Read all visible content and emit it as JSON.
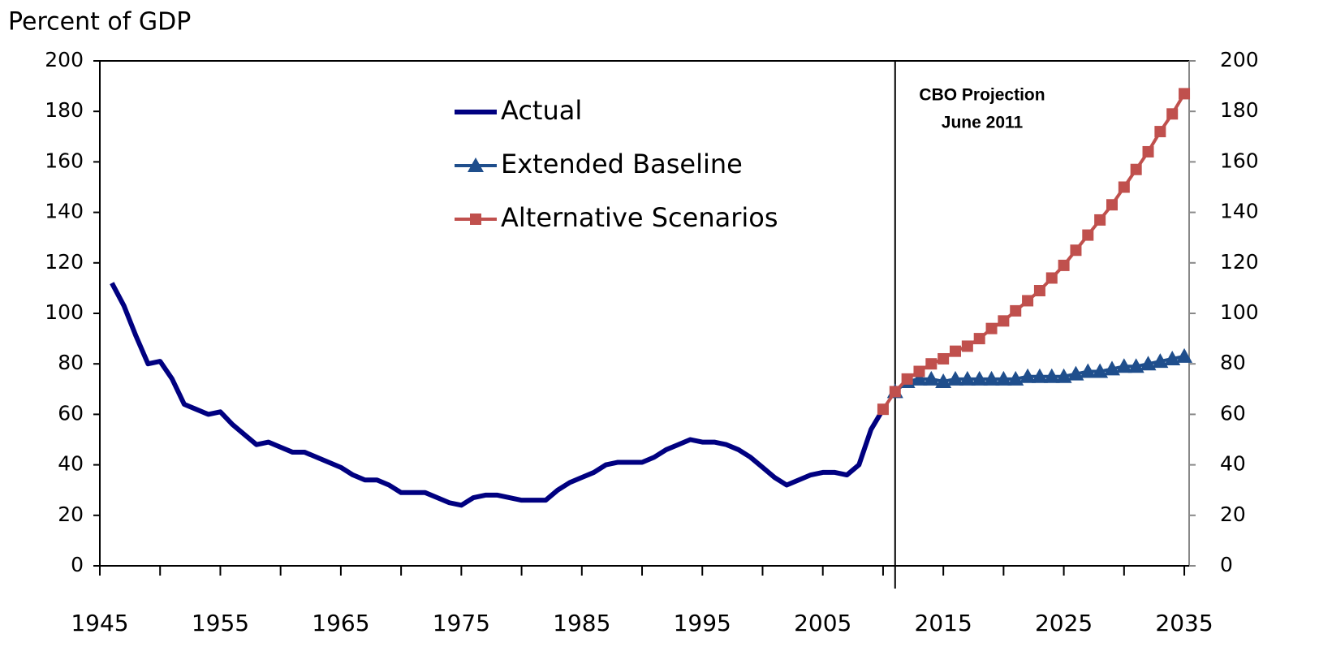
{
  "chart_data": {
    "type": "line",
    "y_axis_title": "Percent of GDP",
    "annotation": [
      "CBO Projection",
      "June 2011"
    ],
    "projection_start": 2011,
    "x": [
      1946,
      1947,
      1948,
      1949,
      1950,
      1951,
      1952,
      1953,
      1954,
      1955,
      1956,
      1957,
      1958,
      1959,
      1960,
      1961,
      1962,
      1963,
      1964,
      1965,
      1966,
      1967,
      1968,
      1969,
      1970,
      1971,
      1972,
      1973,
      1974,
      1975,
      1976,
      1977,
      1978,
      1979,
      1980,
      1981,
      1982,
      1983,
      1984,
      1985,
      1986,
      1987,
      1988,
      1989,
      1990,
      1991,
      1992,
      1993,
      1994,
      1995,
      1996,
      1997,
      1998,
      1999,
      2000,
      2001,
      2002,
      2003,
      2004,
      2005,
      2006,
      2007,
      2008,
      2009,
      2010,
      2011,
      2012,
      2013,
      2014,
      2015,
      2016,
      2017,
      2018,
      2019,
      2020,
      2021,
      2022,
      2023,
      2024,
      2025,
      2026,
      2027,
      2028,
      2029,
      2030,
      2031,
      2032,
      2033,
      2034,
      2035
    ],
    "series": [
      {
        "name": "Actual",
        "color": "#000080",
        "marker": "none",
        "values": [
          112,
          103,
          91,
          80,
          81,
          74,
          64,
          62,
          60,
          61,
          56,
          52,
          48,
          49,
          47,
          45,
          45,
          43,
          41,
          39,
          36,
          34,
          34,
          32,
          29,
          29,
          29,
          27,
          25,
          24,
          27,
          28,
          28,
          27,
          26,
          26,
          26,
          30,
          33,
          35,
          37,
          40,
          41,
          41,
          41,
          43,
          46,
          48,
          50,
          49,
          49,
          48,
          46,
          43,
          39,
          35,
          32,
          34,
          36,
          37,
          37,
          36,
          40,
          54,
          62,
          null,
          null,
          null,
          null,
          null,
          null,
          null,
          null,
          null,
          null,
          null,
          null,
          null,
          null,
          null,
          null,
          null,
          null,
          null,
          null,
          null,
          null,
          null,
          null,
          null
        ]
      },
      {
        "name": "Extended Baseline",
        "color": "#1f4e8c",
        "marker": "triangle",
        "values": [
          null,
          null,
          null,
          null,
          null,
          null,
          null,
          null,
          null,
          null,
          null,
          null,
          null,
          null,
          null,
          null,
          null,
          null,
          null,
          null,
          null,
          null,
          null,
          null,
          null,
          null,
          null,
          null,
          null,
          null,
          null,
          null,
          null,
          null,
          null,
          null,
          null,
          null,
          null,
          null,
          null,
          null,
          null,
          null,
          null,
          null,
          null,
          null,
          null,
          null,
          null,
          null,
          null,
          null,
          null,
          null,
          null,
          null,
          null,
          null,
          null,
          null,
          null,
          null,
          null,
          69,
          73,
          74,
          74,
          73,
          74,
          74,
          74,
          74,
          74,
          74,
          75,
          75,
          75,
          75,
          76,
          77,
          77,
          78,
          79,
          79,
          80,
          81,
          82,
          83
        ]
      },
      {
        "name": "Alternative Scenarios",
        "color": "#c0504d",
        "marker": "square",
        "values": [
          null,
          null,
          null,
          null,
          null,
          null,
          null,
          null,
          null,
          null,
          null,
          null,
          null,
          null,
          null,
          null,
          null,
          null,
          null,
          null,
          null,
          null,
          null,
          null,
          null,
          null,
          null,
          null,
          null,
          null,
          null,
          null,
          null,
          null,
          null,
          null,
          null,
          null,
          null,
          null,
          null,
          null,
          null,
          null,
          null,
          null,
          null,
          null,
          null,
          null,
          null,
          null,
          null,
          null,
          null,
          null,
          null,
          null,
          null,
          null,
          null,
          null,
          null,
          null,
          62,
          69,
          74,
          77,
          80,
          82,
          85,
          87,
          90,
          94,
          97,
          101,
          105,
          109,
          114,
          119,
          125,
          131,
          137,
          143,
          150,
          157,
          164,
          172,
          179,
          187
        ]
      }
    ],
    "xlim": [
      1945,
      2035.4
    ],
    "xticks": [
      1945,
      1955,
      1965,
      1975,
      1985,
      1995,
      2005,
      2015,
      2025,
      2035
    ],
    "xminor_ticks": [
      1950,
      1960,
      1970,
      1980,
      1990,
      2000,
      2010,
      2020,
      2030
    ],
    "ylim": [
      0,
      200
    ],
    "yticks": [
      0,
      20,
      40,
      60,
      80,
      100,
      120,
      140,
      160,
      180,
      200
    ],
    "y2lim": [
      0,
      200
    ],
    "y2ticks": [
      0,
      20,
      40,
      60,
      80,
      100,
      120,
      140,
      160,
      180,
      200
    ],
    "grid": false
  }
}
